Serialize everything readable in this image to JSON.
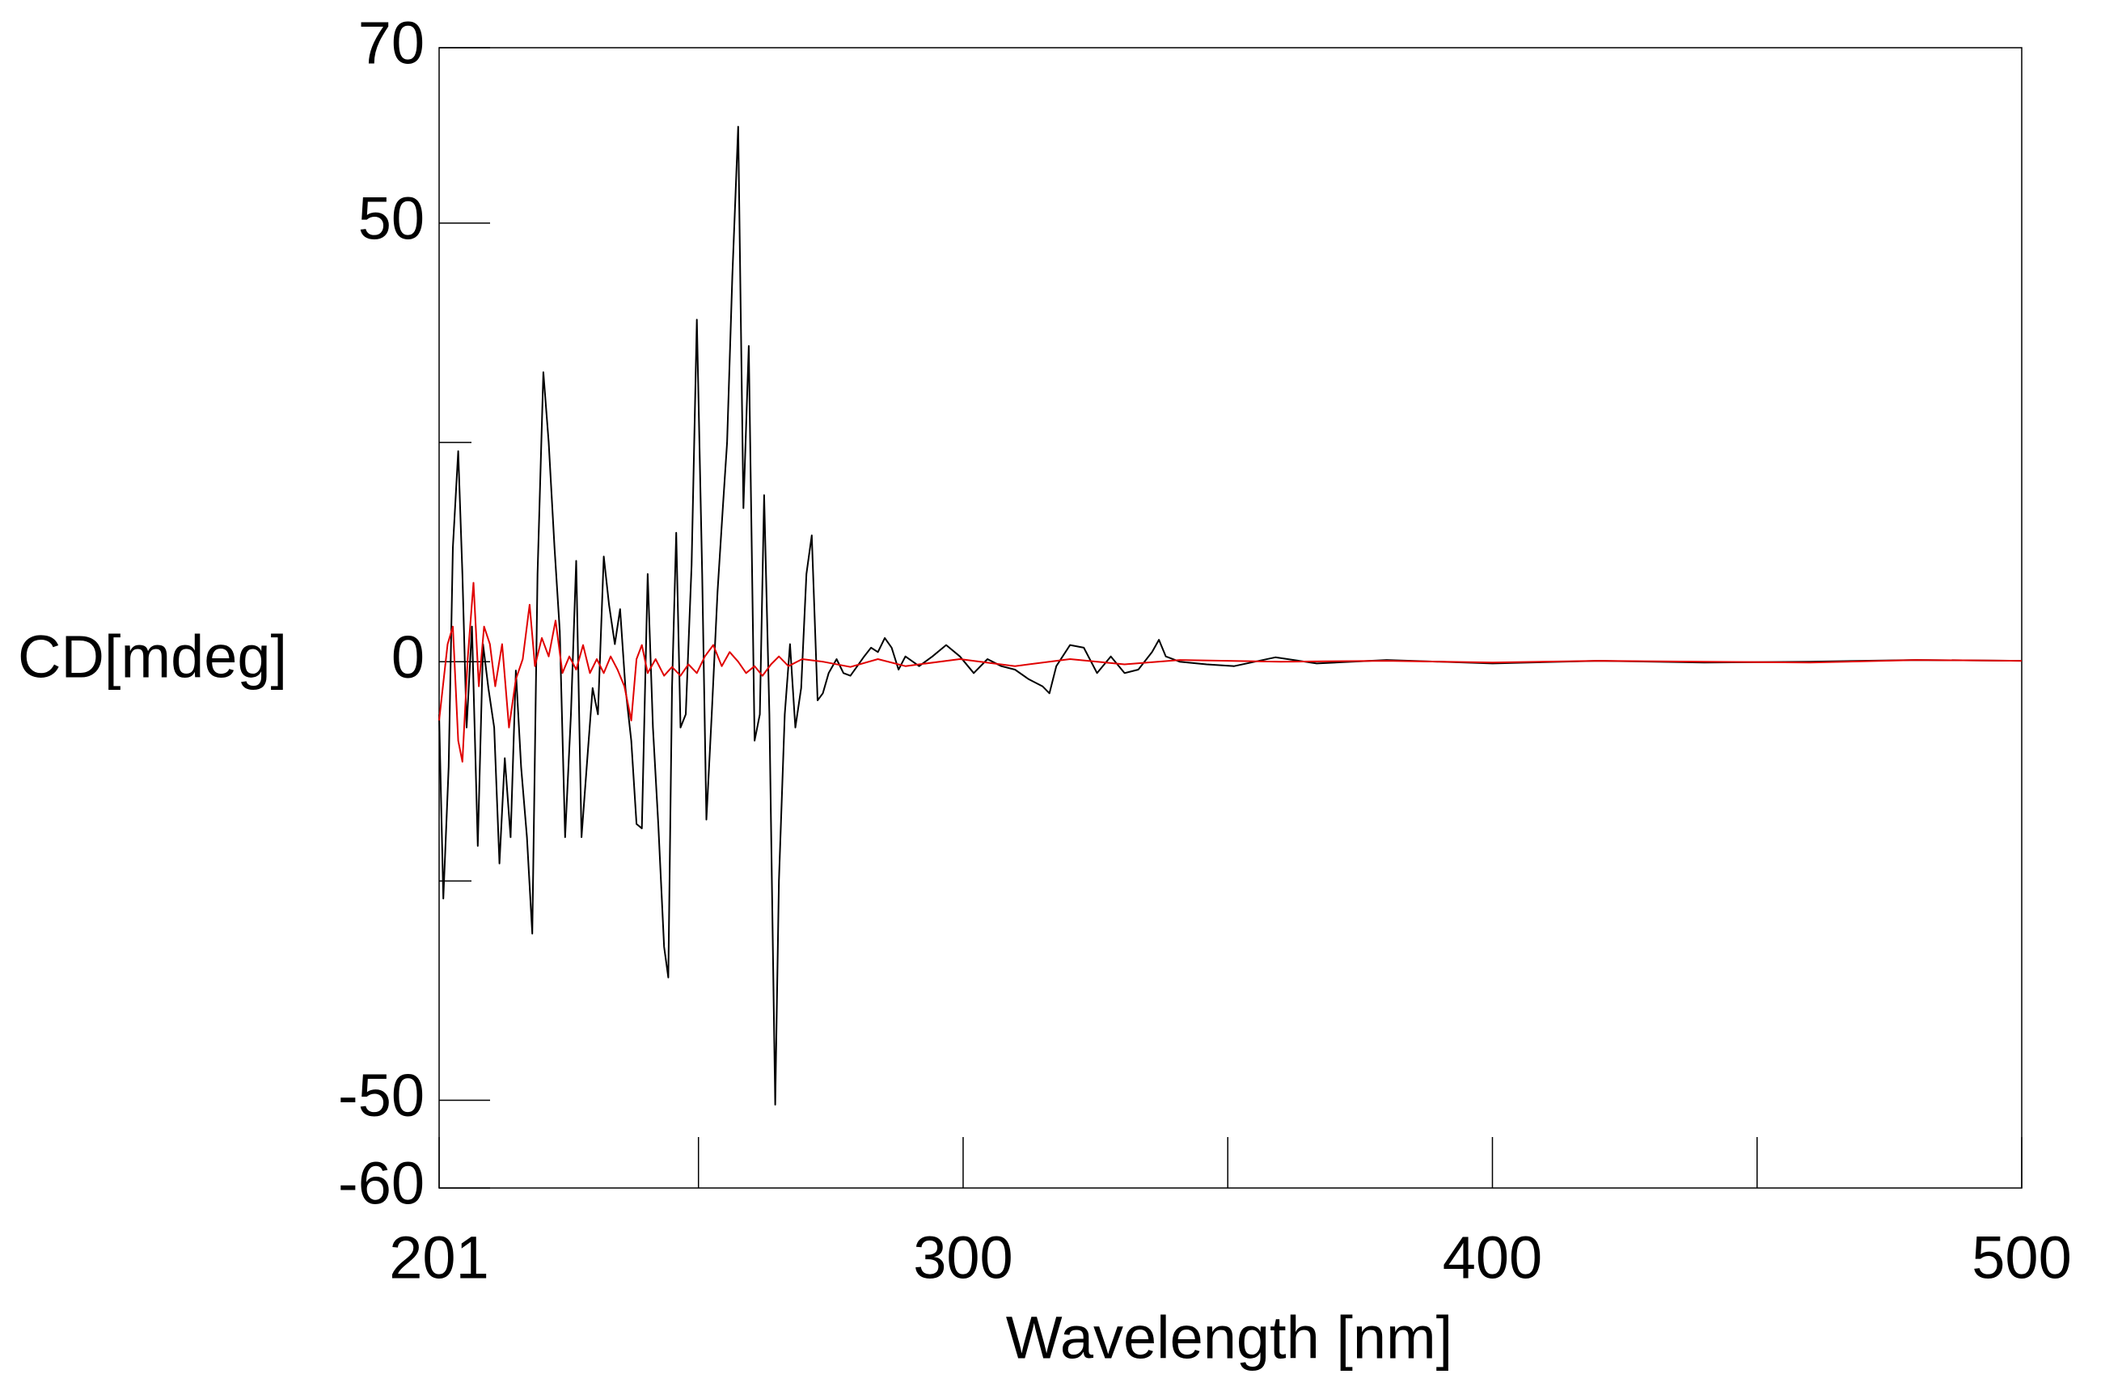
{
  "chart_data": {
    "type": "line",
    "x_label": "Wavelength [nm]",
    "y_label": "CD[mdeg]",
    "xlim": [
      201,
      500
    ],
    "ylim": [
      -60,
      70
    ],
    "xticks": [
      201,
      300,
      400,
      500
    ],
    "minor_xticks": [
      250,
      350,
      450
    ],
    "yticks": [
      70,
      50,
      0,
      -50,
      -60
    ],
    "minor_yticks": [
      25,
      -25
    ],
    "grid": false,
    "series": [
      {
        "color": "#000000",
        "x": [
          201.0,
          201.8,
          202.8,
          203.6,
          204.6,
          205.4,
          206.2,
          207.2,
          208.3,
          209.3,
          210.3,
          211.4,
          212.4,
          213.4,
          214.5,
          215.5,
          216.5,
          217.6,
          218.6,
          219.6,
          220.7,
          221.7,
          222.8,
          223.8,
          224.8,
          225.9,
          226.9,
          227.9,
          229.0,
          230.0,
          231.0,
          232.1,
          233.1,
          234.2,
          235.2,
          236.2,
          237.3,
          238.3,
          239.3,
          240.4,
          241.4,
          242.4,
          243.5,
          244.3,
          245.0,
          245.8,
          246.6,
          247.6,
          248.7,
          249.7,
          250.7,
          251.5,
          252.5,
          253.6,
          254.6,
          255.4,
          256.4,
          257.5,
          258.5,
          259.5,
          260.6,
          261.6,
          262.4,
          263.4,
          264.5,
          265.2,
          266.3,
          267.3,
          268.3,
          269.4,
          270.4,
          271.4,
          272.5,
          273.5,
          274.6,
          276.1,
          277.4,
          278.7,
          280.0,
          281.3,
          282.6,
          283.9,
          285.2,
          286.5,
          287.8,
          289.1,
          291.7,
          294.2,
          296.8,
          299.4,
          302.0,
          304.6,
          307.2,
          309.8,
          312.4,
          315.0,
          316.3,
          317.6,
          320.2,
          322.8,
          325.3,
          327.9,
          330.5,
          333.1,
          335.7,
          337.0,
          338.3,
          340.9,
          346.0,
          351.2,
          359.0,
          366.8,
          380,
          400,
          420,
          440,
          460,
          480,
          500
        ],
        "values": [
          -6,
          -27,
          -12,
          13,
          24,
          10,
          -7.5,
          4,
          -21,
          2,
          -3,
          -7.5,
          -23,
          -11,
          -20,
          -1,
          -12,
          -20,
          -31,
          10,
          33,
          25,
          13,
          3.5,
          -20,
          -6,
          11.5,
          -20,
          -11,
          -3,
          -6,
          12,
          6.5,
          2,
          6,
          -3,
          -9,
          -18.5,
          -19,
          10,
          -7.5,
          -18.5,
          -32.5,
          -36,
          -3,
          14.7,
          -7.5,
          -6,
          11,
          39,
          10,
          -18,
          -6,
          8,
          17.5,
          25,
          44,
          61,
          17.5,
          36,
          -9,
          -6,
          19,
          -6,
          -50.5,
          -25,
          -6,
          2,
          -7.5,
          -3,
          10,
          14.4,
          -4.4,
          -3.6,
          -1.3,
          0.3,
          -1.3,
          -1.6,
          -0.5,
          0.6,
          1.6,
          1.1,
          2.7,
          1.6,
          -0.9,
          0.6,
          -0.5,
          0.6,
          1.9,
          0.6,
          -1.3,
          0.3,
          -0.5,
          -0.9,
          -2,
          -2.8,
          -3.6,
          -0.5,
          1.9,
          1.6,
          -1.3,
          0.6,
          -1.3,
          -0.9,
          1.1,
          2.5,
          0.6,
          0,
          -0.3,
          -0.5,
          0.5,
          -0.2,
          0.2,
          -0.2,
          0.1,
          -0.1,
          0,
          0.2,
          0.1
        ]
      },
      {
        "color": "#e00000",
        "x": [
          201.0,
          202.6,
          203.6,
          204.6,
          205.4,
          206.4,
          207.5,
          208.5,
          209.5,
          210.6,
          211.6,
          212.9,
          214.2,
          215.5,
          216.8,
          218.1,
          219.1,
          220.4,
          221.7,
          223.0,
          224.3,
          225.6,
          226.9,
          228.2,
          229.5,
          230.8,
          232.1,
          233.4,
          234.7,
          236.0,
          237.3,
          238.3,
          239.3,
          240.4,
          241.9,
          243.5,
          245.0,
          246.6,
          248.1,
          249.7,
          251.2,
          252.8,
          254.4,
          255.9,
          257.5,
          259.0,
          260.6,
          262.1,
          263.7,
          265.2,
          267.0,
          269.6,
          273.5,
          278.7,
          283.9,
          289.1,
          299.4,
          309.8,
          320.2,
          330.5,
          340.9,
          360,
          380,
          400,
          420,
          440,
          460,
          480,
          500
        ],
        "values": [
          -6.7,
          2,
          4,
          -9,
          -11.4,
          0.3,
          9,
          -2.8,
          4,
          2,
          -2.8,
          2,
          -7.5,
          -2,
          0.3,
          6.5,
          -0.5,
          2.7,
          0.6,
          4.7,
          -1.3,
          0.6,
          -0.9,
          1.9,
          -1.3,
          0.3,
          -1.3,
          0.6,
          -0.9,
          -2.8,
          -6.7,
          0.3,
          1.9,
          -1.3,
          0.3,
          -1.6,
          -0.6,
          -1.6,
          -0.3,
          -1.3,
          0.6,
          1.9,
          -0.5,
          1.1,
          0,
          -1.3,
          -0.5,
          -1.6,
          -0.3,
          0.6,
          -0.5,
          0.3,
          0,
          -0.6,
          0.3,
          -0.5,
          0.3,
          -0.5,
          0.3,
          -0.3,
          0.2,
          0,
          0.1,
          -0.1,
          0.1,
          0,
          -0.1,
          0.2,
          0.1
        ]
      }
    ]
  }
}
